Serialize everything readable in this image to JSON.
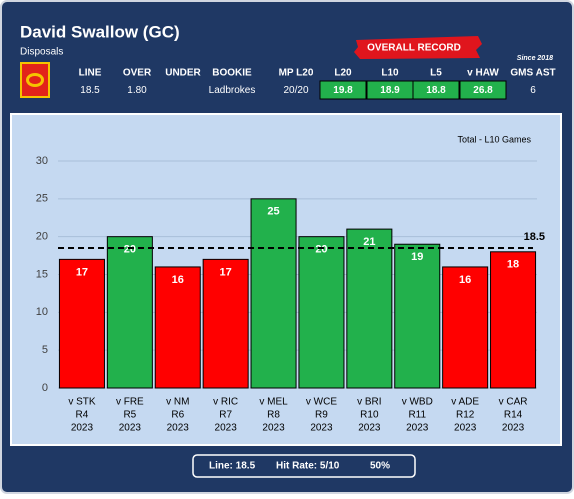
{
  "header": {
    "title": "David Swallow (GC)",
    "subtitle": "Disposals",
    "badge": "OVERALL RECORD",
    "since": "Since 2018"
  },
  "stats": [
    {
      "label": "LINE",
      "value": 18.5
    },
    {
      "label": "OVER",
      "value": "1.80"
    },
    {
      "label": "UNDER"
    },
    {
      "label": "BOOKIE",
      "value": "Ladbrokes"
    },
    {
      "label": "MP L20",
      "value": "20/20"
    },
    {
      "label": "L20",
      "value": 19.8,
      "highlight": true
    },
    {
      "label": "L10",
      "value": 18.9,
      "highlight": true
    },
    {
      "label": "L5",
      "value": 18.8,
      "highlight": true
    },
    {
      "label": "v HAW",
      "value": 26.8,
      "highlight": true
    },
    {
      "label": "GMS AST",
      "value": 6
    }
  ],
  "chart_data": {
    "type": "bar",
    "annotation": "Total - L10 Games",
    "categories": [
      [
        "v STK",
        "R4",
        "2023"
      ],
      [
        "v FRE",
        "R5",
        "2023"
      ],
      [
        "v NM",
        "R6",
        "2023"
      ],
      [
        "v RIC",
        "R7",
        "2023"
      ],
      [
        "v MEL",
        "R8",
        "2023"
      ],
      [
        "v WCE",
        "R9",
        "2023"
      ],
      [
        "v BRI",
        "R10",
        "2023"
      ],
      [
        "v WBD",
        "R11",
        "2023"
      ],
      [
        "v ADE",
        "R12",
        "2023"
      ],
      [
        "v CAR",
        "R14",
        "2023"
      ]
    ],
    "values": [
      17,
      20,
      16,
      17,
      25,
      20,
      21,
      19,
      16,
      18
    ],
    "colors": [
      "#ff0000",
      "#22b14c",
      "#ff0000",
      "#ff0000",
      "#22b14c",
      "#22b14c",
      "#22b14c",
      "#22b14c",
      "#ff0000",
      "#ff0000"
    ],
    "reference_line": 18.5,
    "ylim": [
      0,
      30
    ],
    "yticks": [
      0,
      5,
      10,
      15,
      20,
      25,
      30
    ],
    "grid": true
  },
  "footer": {
    "line": "Line: 18.5",
    "hit_rate": "Hit Rate: 5/10",
    "percent": "50%"
  }
}
